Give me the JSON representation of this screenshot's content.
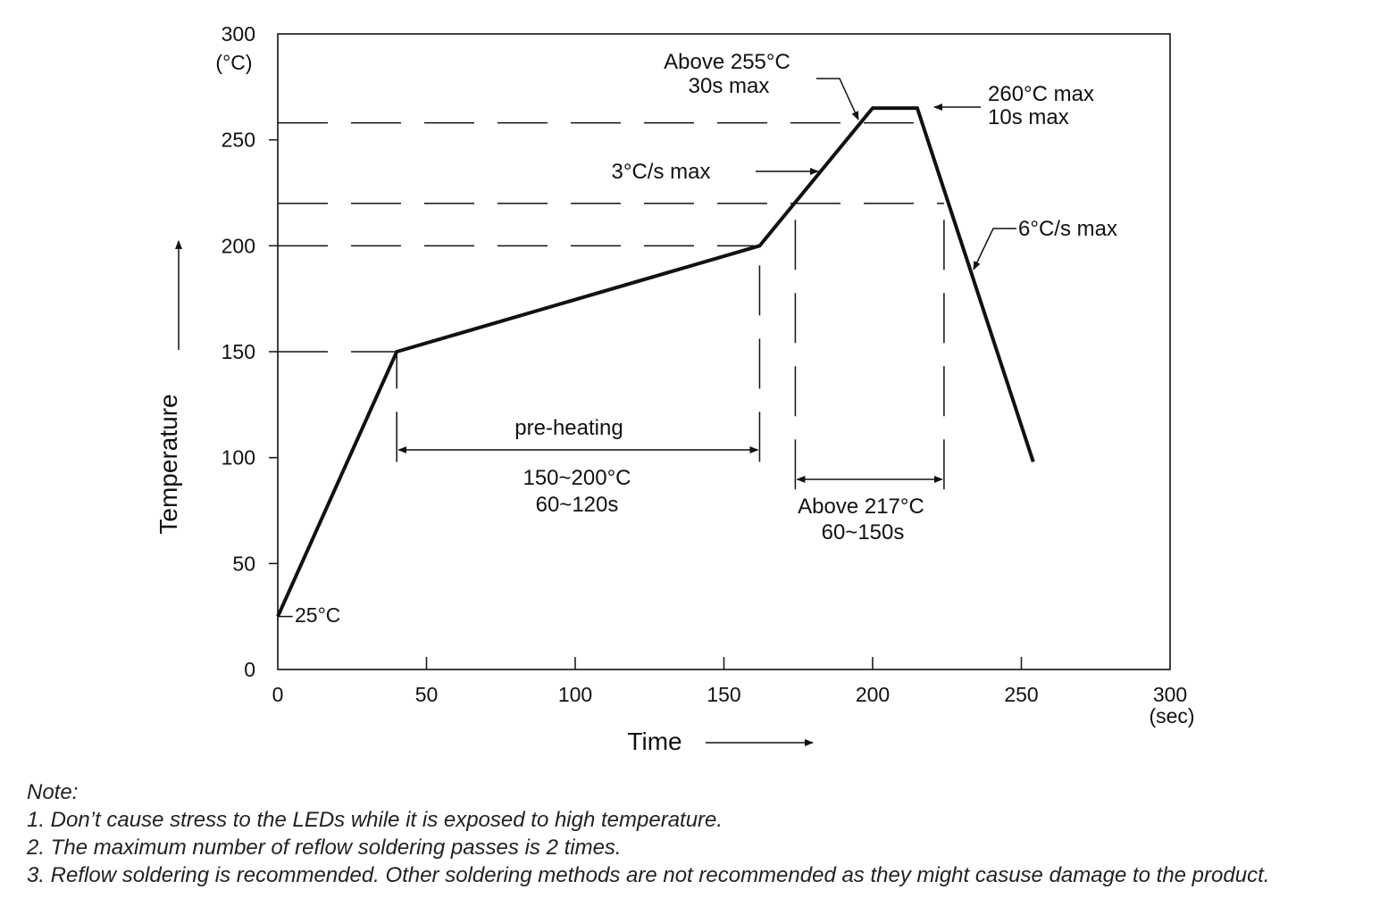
{
  "chart_data": {
    "type": "line",
    "title": "",
    "xlabel": "Time",
    "ylabel": "Temperature",
    "x_unit": "(sec)",
    "y_unit": "(°C)",
    "xlim": [
      0,
      300
    ],
    "ylim": [
      0,
      300
    ],
    "x_ticks": [
      "0",
      "50",
      "100",
      "150",
      "200",
      "250",
      "300"
    ],
    "y_ticks": [
      "0",
      "50",
      "100",
      "150",
      "200",
      "250",
      "300"
    ],
    "grid": false,
    "series": [
      {
        "x": [
          0,
          40,
          162,
          200,
          215,
          254
        ],
        "y": [
          25,
          150,
          200,
          265,
          265,
          98
        ]
      }
    ],
    "reference_lines": [
      {
        "axis": "y",
        "value": 150,
        "x_from": 0,
        "x_to": 40
      },
      {
        "axis": "y",
        "value": 200,
        "x_from": 0,
        "x_to": 162
      },
      {
        "axis": "y",
        "value": 220,
        "x_from": 0,
        "x_to": 224
      },
      {
        "axis": "y",
        "value": 258,
        "x_from": 0,
        "x_to": 215
      },
      {
        "axis": "x",
        "value": 40,
        "y_from": 98,
        "y_to": 150
      },
      {
        "axis": "x",
        "value": 162,
        "y_from": 98,
        "y_to": 200
      },
      {
        "axis": "x",
        "value": 174,
        "y_from": 85,
        "y_to": 220
      },
      {
        "axis": "x",
        "value": 224,
        "y_from": 85,
        "y_to": 220
      }
    ],
    "annotations": {
      "start_temp": "25°C",
      "preheating_label": "pre-heating",
      "preheating_range": "150~200°C",
      "preheating_time": "60~120s",
      "above217_label": "Above 217°C",
      "above217_time": "60~150s",
      "above255_label": "Above 255°C",
      "above255_time": "30s max",
      "peak_temp": "260°C max",
      "peak_time": "10s max",
      "ramp_up": "3°C/s max",
      "ramp_down": "6°C/s max"
    }
  },
  "notes": {
    "heading": "Note:",
    "items": [
      "1. Don’t cause stress to the LEDs while it is exposed to high temperature.",
      "2. The maximum number of reflow soldering passes is 2 times.",
      "3. Reflow soldering is recommended. Other soldering methods are not recommended as they might casuse damage to the product."
    ]
  }
}
